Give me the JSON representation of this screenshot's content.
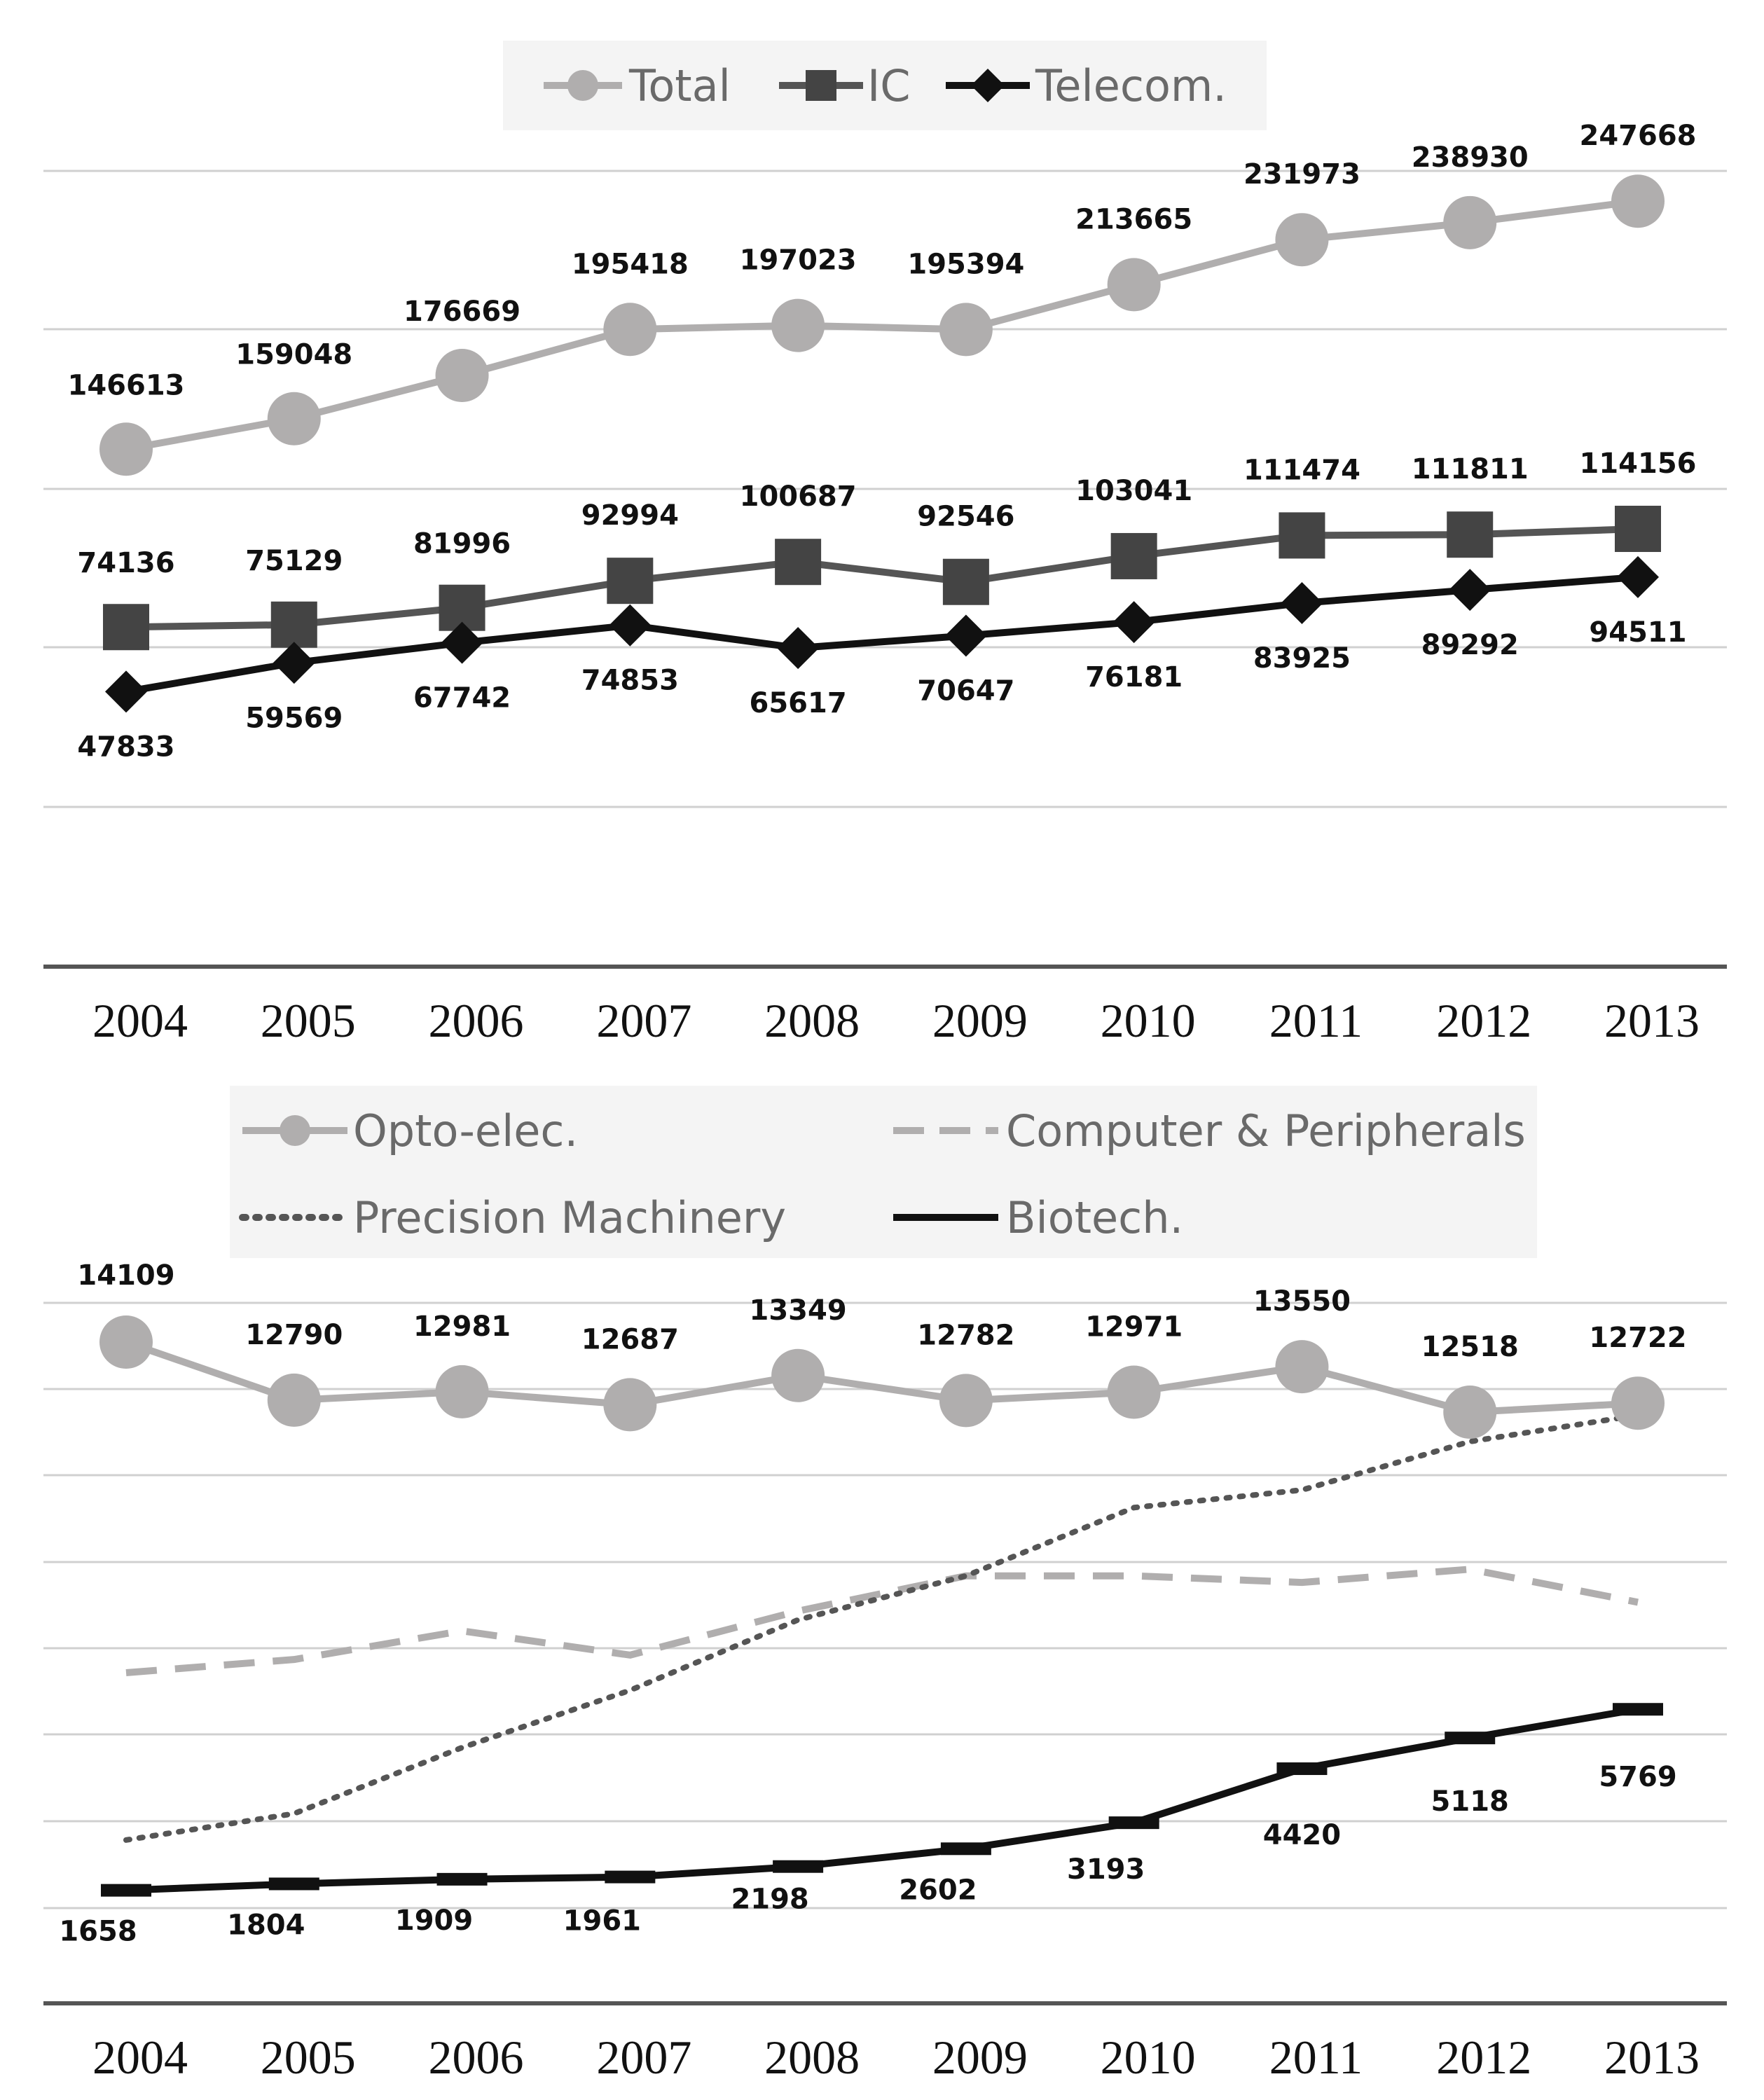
{
  "colors": {
    "total": "#b0aeae",
    "ic": "#555555",
    "telecom": "#111111",
    "opto": "#b0aeae",
    "computer": "#b0aeae",
    "precision": "#555555",
    "biotech": "#111111",
    "legend_bg": "#f4f4f4",
    "grid": "#d0d0d0",
    "axis": "#555555"
  },
  "chart_data": [
    {
      "type": "line",
      "categories": [
        "2004",
        "2005",
        "2006",
        "2007",
        "2008",
        "2009",
        "2010",
        "2011",
        "2012",
        "2013"
      ],
      "ylim": [
        0,
        260000
      ],
      "legend_position": "top-center",
      "series": [
        {
          "name": "Total",
          "key": "total",
          "marker": "circle",
          "style": "solid",
          "values": [
            146613,
            159048,
            176669,
            195418,
            197023,
            195394,
            213665,
            231973,
            238930,
            247668
          ],
          "labels": [
            "146613",
            "159048",
            "176669",
            "195418",
            "197023",
            "195394",
            "213665",
            "231973",
            "238930",
            "247668"
          ]
        },
        {
          "name": "IC",
          "key": "ic",
          "marker": "square",
          "style": "solid",
          "values": [
            74136,
            75129,
            81996,
            92994,
            100687,
            92546,
            103041,
            111474,
            111811,
            114156
          ],
          "labels": [
            "74136",
            "75129",
            "81996",
            "92994",
            "100687",
            "92546",
            "103041",
            "111474",
            "111811",
            "114156"
          ]
        },
        {
          "name": "Telecom.",
          "key": "telecom",
          "marker": "diamond",
          "style": "solid",
          "values": [
            47833,
            59569,
            67742,
            74853,
            65617,
            70647,
            76181,
            83925,
            89292,
            94511
          ],
          "labels": [
            "47833",
            "59569",
            "67742",
            "74853",
            "65617",
            "70647",
            "76181",
            "83925",
            "89292",
            "94511"
          ]
        }
      ]
    },
    {
      "type": "line",
      "categories": [
        "2004",
        "2005",
        "2006",
        "2007",
        "2008",
        "2009",
        "2010",
        "2011",
        "2012",
        "2013"
      ],
      "ylim": [
        1000,
        15000
      ],
      "legend_position": "top-center",
      "series": [
        {
          "name": "Opto-elec.",
          "key": "opto",
          "marker": "circle",
          "style": "solid",
          "values": [
            14109,
            12790,
            12981,
            12687,
            13349,
            12782,
            12971,
            13550,
            12518,
            12722
          ],
          "labels": [
            "14109",
            "12790",
            "12981",
            "12687",
            "13349",
            "12782",
            "12971",
            "13550",
            "12518",
            "12722"
          ]
        },
        {
          "name": "Computer & Peripherals",
          "key": "computer",
          "marker": "none",
          "style": "dashed",
          "values": [
            6600,
            6900,
            7550,
            7000,
            8000,
            8800,
            8800,
            8650,
            8950,
            8200
          ],
          "labels": []
        },
        {
          "name": "Precision Machinery",
          "key": "precision",
          "marker": "none",
          "style": "dotted",
          "values": [
            2800,
            3400,
            4900,
            6200,
            7800,
            8800,
            10350,
            10750,
            11850,
            12450
          ],
          "labels": []
        },
        {
          "name": "Biotech.",
          "key": "biotech",
          "marker": "none",
          "style": "solid",
          "values": [
            1658,
            1804,
            1909,
            1961,
            2198,
            2602,
            3193,
            4420,
            5118,
            5769
          ],
          "labels": [
            "1658",
            "1804",
            "1909",
            "1961",
            "2198",
            "2602",
            "3193",
            "4420",
            "5118",
            "5769"
          ]
        }
      ]
    }
  ]
}
